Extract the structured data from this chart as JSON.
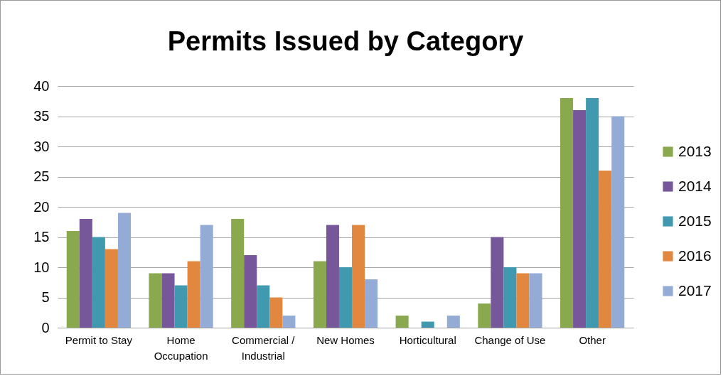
{
  "chart_data": {
    "type": "bar",
    "title": "Permits Issued by Category",
    "categories": [
      "Permit to Stay",
      "Home Occupation",
      "Commercial / Industrial",
      "New Homes",
      "Horticultural",
      "Change of Use",
      "Other"
    ],
    "series": [
      {
        "name": "2013",
        "color": "#8aa84e",
        "values": [
          16,
          9,
          18,
          11,
          2,
          4,
          38
        ]
      },
      {
        "name": "2014",
        "color": "#76589a",
        "values": [
          18,
          9,
          12,
          17,
          0,
          15,
          36
        ]
      },
      {
        "name": "2015",
        "color": "#4199b0",
        "values": [
          15,
          7,
          7,
          10,
          1,
          10,
          38
        ]
      },
      {
        "name": "2016",
        "color": "#e2873f",
        "values": [
          13,
          11,
          5,
          17,
          0,
          9,
          26
        ]
      },
      {
        "name": "2017",
        "color": "#94abd6",
        "values": [
          19,
          17,
          2,
          8,
          2,
          9,
          35
        ]
      }
    ],
    "ylim": [
      0,
      40
    ],
    "yticks": [
      0,
      5,
      10,
      15,
      20,
      25,
      30,
      35,
      40
    ],
    "grid": "y",
    "legend": "right"
  }
}
